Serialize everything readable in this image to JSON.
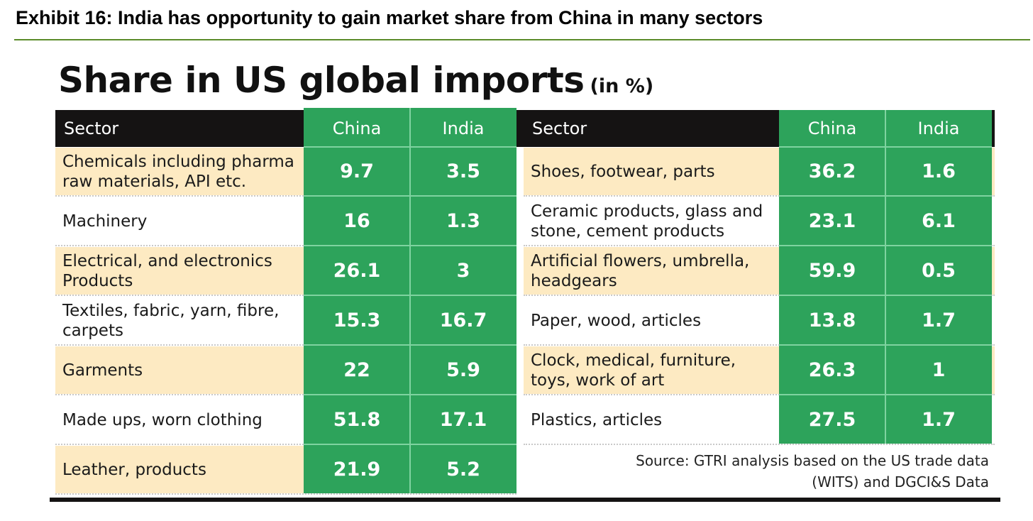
{
  "exhibit_title": "Exhibit 16: India has opportunity to gain market share from China in many sectors",
  "chart_data": {
    "type": "table",
    "title": "Share in US global imports",
    "unit_note": "(in %)",
    "columns": [
      "Sector",
      "China",
      "India"
    ],
    "left_rows": [
      {
        "sector": "Chemicals including pharma raw materials, API etc.",
        "china": "9.7",
        "india": "3.5"
      },
      {
        "sector": "Machinery",
        "china": "16",
        "india": "1.3"
      },
      {
        "sector": "Electrical, and electronics Products",
        "china": "26.1",
        "india": "3"
      },
      {
        "sector": "Textiles, fabric, yarn, fibre, carpets",
        "china": "15.3",
        "india": "16.7"
      },
      {
        "sector": "Garments",
        "china": "22",
        "india": "5.9"
      },
      {
        "sector": "Made ups, worn clothing",
        "china": "51.8",
        "india": "17.1"
      },
      {
        "sector": "Leather, products",
        "china": "21.9",
        "india": "5.2"
      }
    ],
    "right_rows": [
      {
        "sector": "Shoes, footwear, parts",
        "china": "36.2",
        "india": "1.6"
      },
      {
        "sector": "Ceramic products, glass and stone, cement products",
        "china": "23.1",
        "india": "6.1"
      },
      {
        "sector": "Artificial flowers, umbrella, headgears",
        "china": "59.9",
        "india": "0.5"
      },
      {
        "sector": "Paper, wood, articles",
        "china": "13.8",
        "india": "1.7"
      },
      {
        "sector": "Clock, medical, furniture, toys, work of art",
        "china": "26.3",
        "india": "1"
      },
      {
        "sector": "Plastics, articles",
        "china": "27.5",
        "india": "1.7"
      }
    ],
    "source_line1": "Source: GTRI analysis based on the US trade data",
    "source_line2": "(WITS) and DGCI&S Data"
  },
  "colors": {
    "header": "#151313",
    "green": "#2da35b",
    "tan_band": "#fdeac2",
    "rule": "#5b8c2a"
  }
}
